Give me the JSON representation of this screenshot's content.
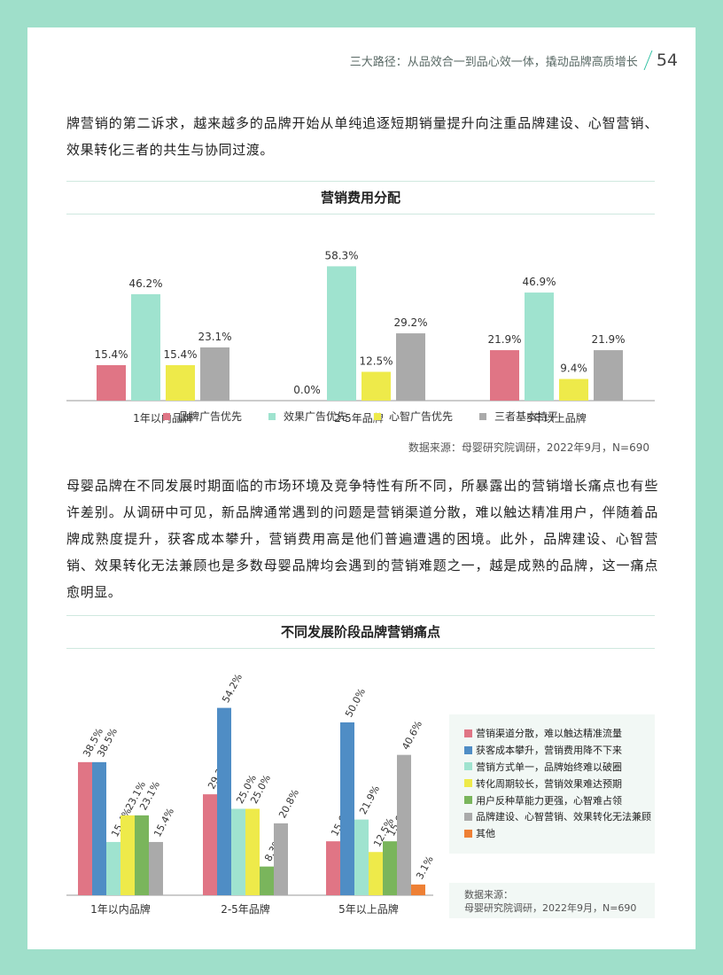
{
  "header": {
    "title": "三大路径：从品效合一到品心效一体，撬动品牌高质增长",
    "page_number": "54"
  },
  "paragraph1": "牌营销的第二诉求，越来越多的品牌开始从单纯追逐短期销量提升向注重品牌建设、心智营销、效果转化三者的共生与协同过渡。",
  "paragraph2": "母婴品牌在不同发展时期面临的市场环境及竞争特性有所不同，所暴露出的营销增长痛点也有些许差别。从调研中可见，新品牌通常遇到的问题是营销渠道分散，难以触达精准用户，伴随着品牌成熟度提升，获客成本攀升，营销费用高是他们普遍遭遇的困境。此外，品牌建设、心智营销、效果转化无法兼顾也是多数母婴品牌均会遇到的营销难题之一，越是成熟的品牌，这一痛点愈明显。",
  "chart1_source": "数据来源：母婴研究院调研，2022年9月，N=690",
  "chart2_source_label": "数据来源：",
  "chart2_source_text": "母婴研究院调研，2022年9月，N=690",
  "chart_data": [
    {
      "type": "bar",
      "title": "营销费用分配",
      "categories": [
        "1年以内品牌",
        "2-5年品牌",
        "5年以上品牌"
      ],
      "series": [
        {
          "name": "品牌广告优先",
          "color": "#e07585",
          "values": [
            15.4,
            0.0,
            21.9
          ]
        },
        {
          "name": "效果广告优先",
          "color": "#9fe3cf",
          "values": [
            46.2,
            58.3,
            46.9
          ]
        },
        {
          "name": "心智广告优先",
          "color": "#eeea4a",
          "values": [
            15.4,
            12.5,
            9.4
          ]
        },
        {
          "name": "三者基本持平",
          "color": "#aaaaaa",
          "values": [
            23.1,
            29.2,
            21.9
          ]
        }
      ],
      "value_format": "%",
      "grid": false,
      "legend": "bottom"
    },
    {
      "type": "bar",
      "title": "不同发展阶段品牌营销痛点",
      "categories": [
        "1年以内品牌",
        "2-5年品牌",
        "5年以上品牌"
      ],
      "series": [
        {
          "name": "营销渠道分散，难以触达精准流量",
          "color": "#e07585",
          "values": [
            38.5,
            29.2,
            15.6
          ]
        },
        {
          "name": "获客成本攀升，营销费用降不下来",
          "color": "#4f8dc5",
          "values": [
            38.5,
            54.2,
            50.0
          ]
        },
        {
          "name": "营销方式单一，品牌始终难以破圈",
          "color": "#9fe3cf",
          "values": [
            15.4,
            25.0,
            21.9
          ]
        },
        {
          "name": "转化周期较长，营销效果难达预期",
          "color": "#eeea4a",
          "values": [
            23.1,
            25.0,
            12.5
          ]
        },
        {
          "name": "用户反种草能力更强，心智难占领",
          "color": "#7ab55c",
          "values": [
            23.1,
            8.3,
            15.6
          ]
        },
        {
          "name": "品牌建设、心智营销、效果转化无法兼顾",
          "color": "#aaaaaa",
          "values": [
            15.4,
            20.8,
            40.6
          ]
        },
        {
          "name": "其他",
          "color": "#ee8035",
          "values": [
            0.0,
            0.0,
            3.1
          ]
        }
      ],
      "value_format": "%",
      "grid": false,
      "legend": "right"
    }
  ]
}
